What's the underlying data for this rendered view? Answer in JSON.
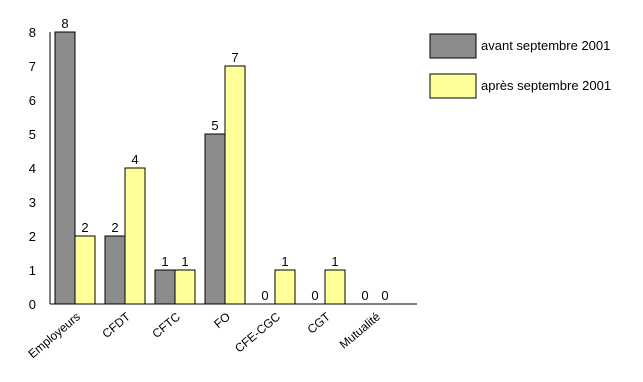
{
  "chart_data": {
    "type": "bar",
    "title": "",
    "xlabel": "",
    "ylabel": "",
    "categories": [
      "Employeurs",
      "CFDT",
      "CFTC",
      "FO",
      "CFE-CGC",
      "CGT",
      "Mutualité"
    ],
    "series": [
      {
        "name": "avant septembre 2001",
        "color": "#8c8c8c",
        "values": [
          8,
          2,
          1,
          5,
          0,
          0,
          0
        ]
      },
      {
        "name": "après septembre 2001",
        "color": "#ffff99",
        "values": [
          2,
          4,
          1,
          7,
          1,
          1,
          0
        ]
      }
    ],
    "ylim": [
      0,
      8
    ],
    "yticks": [
      "0",
      "1",
      "2",
      "3",
      "4",
      "5",
      "6",
      "7",
      "8"
    ],
    "grid": false,
    "legend_position": "top-right",
    "bar_border_color": "#000000",
    "axis_color": "#000000"
  }
}
